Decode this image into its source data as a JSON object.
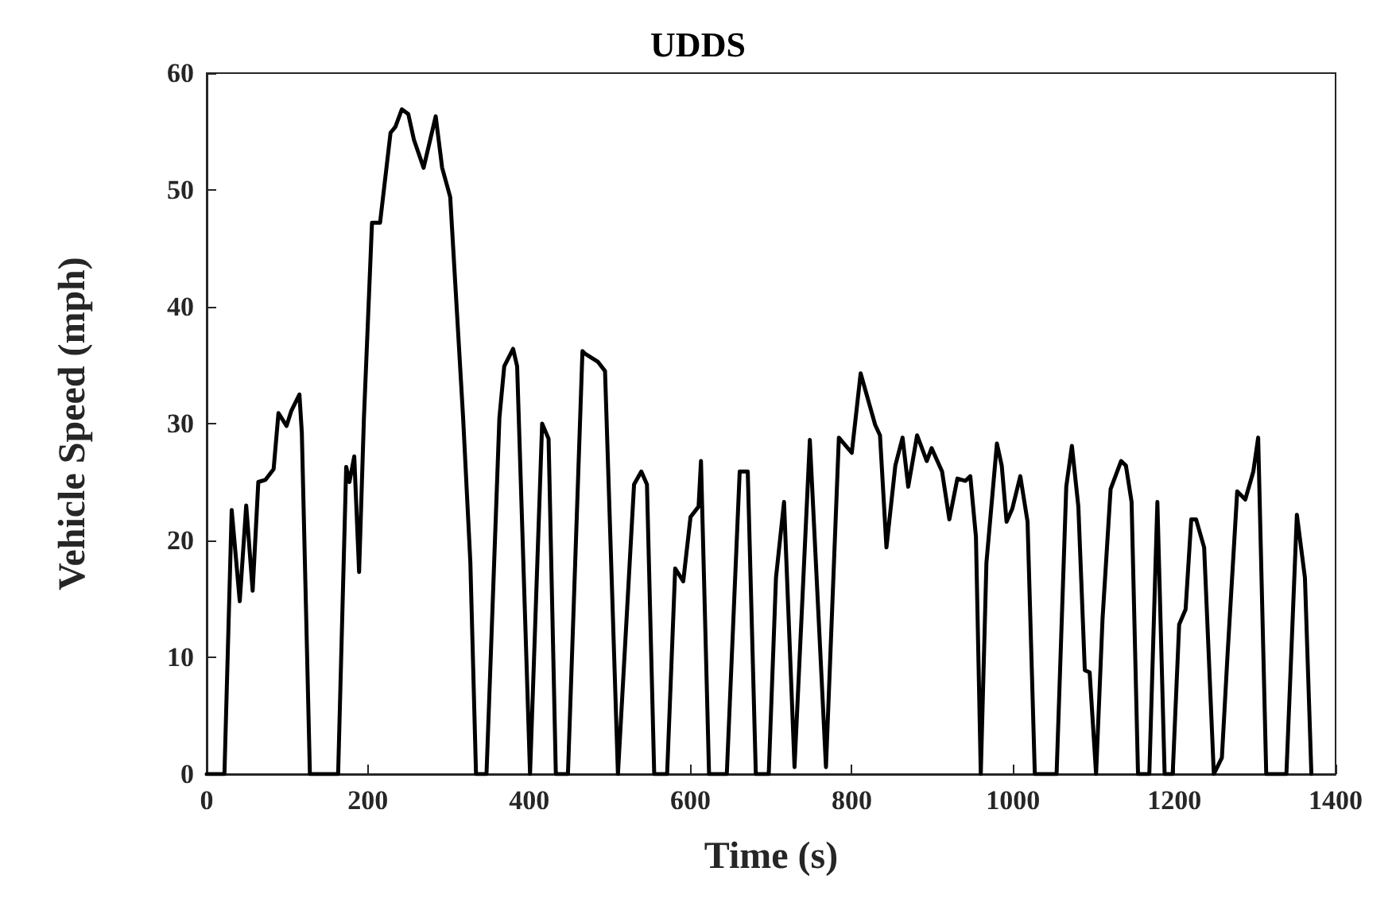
{
  "chart_data": {
    "type": "line",
    "title": "UDDS",
    "xlabel": "Time (s)",
    "ylabel": "Vehicle Speed (mph)",
    "x": [
      0,
      22,
      31,
      41,
      49,
      57,
      64,
      73,
      83,
      89,
      99,
      105,
      115,
      118,
      128,
      163,
      173,
      177,
      183,
      189,
      195,
      205,
      215,
      228,
      234,
      242,
      250,
      257,
      269,
      284,
      292,
      302,
      318,
      327,
      334,
      347,
      363,
      369,
      380,
      385,
      401,
      416,
      424,
      433,
      448,
      466,
      469,
      485,
      494,
      510,
      530,
      539,
      546,
      555,
      571,
      581,
      591,
      600,
      610,
      613,
      623,
      645,
      661,
      671,
      681,
      697,
      706,
      716,
      729,
      748,
      768,
      784,
      800,
      811,
      829,
      835,
      843,
      854,
      863,
      870,
      881,
      893,
      899,
      912,
      921,
      931,
      941,
      947,
      954,
      960,
      967,
      980,
      986,
      992,
      999,
      1009,
      1018,
      1027,
      1054,
      1066,
      1073,
      1081,
      1089,
      1095,
      1103,
      1111,
      1121,
      1134,
      1140,
      1147,
      1155,
      1169,
      1179,
      1188,
      1198,
      1206,
      1214,
      1221,
      1227,
      1237,
      1249,
      1259,
      1266,
      1278,
      1288,
      1298,
      1304,
      1314,
      1339,
      1352,
      1362,
      1370
    ],
    "series": [
      {
        "color": "#000000",
        "values": [
          0,
          0,
          22.6,
          14.8,
          23,
          15.7,
          25,
          25.2,
          26.1,
          30.9,
          29.8,
          31.1,
          32.5,
          29.2,
          0,
          0,
          26.3,
          25,
          27.2,
          17.3,
          30.5,
          47.2,
          47.2,
          54.9,
          55.4,
          56.9,
          56.5,
          54.3,
          51.9,
          56.3,
          51.9,
          49.4,
          30.5,
          18.1,
          0,
          0,
          30.5,
          34.9,
          36.4,
          34.9,
          0,
          30,
          28.7,
          0,
          0,
          36.2,
          36,
          35.3,
          34.5,
          0,
          24.8,
          25.9,
          24.8,
          0,
          0,
          17.6,
          16.5,
          22,
          22.9,
          26.8,
          0,
          0,
          25.9,
          25.9,
          0,
          0,
          16.8,
          23.3,
          0.6,
          28.6,
          0.6,
          28.8,
          27.5,
          34.3,
          29.9,
          29,
          19.4,
          26.4,
          28.8,
          24.6,
          29,
          26.8,
          27.9,
          25.9,
          21.8,
          25.3,
          25.1,
          25.5,
          20.3,
          0,
          18.1,
          28.3,
          26.4,
          21.6,
          22.7,
          25.5,
          21.6,
          0,
          0,
          24.6,
          28.1,
          22.9,
          8.9,
          8.7,
          0,
          13.3,
          24.4,
          26.8,
          26.4,
          23.3,
          0,
          0,
          23.3,
          0,
          0,
          12.8,
          14.1,
          21.8,
          21.8,
          19.4,
          0,
          1.4,
          10.2,
          24.2,
          23.5,
          25.9,
          28.8,
          0,
          0,
          22.2,
          16.8,
          0
        ]
      }
    ],
    "xlim": [
      0,
      1400
    ],
    "xticks": [
      0,
      200,
      400,
      600,
      800,
      1000,
      1200,
      1400
    ],
    "ylim": [
      0,
      60
    ],
    "yticks": [
      0,
      10,
      20,
      30,
      40,
      50,
      60
    ],
    "grid": false,
    "marker": "none",
    "line_style": "solid"
  }
}
